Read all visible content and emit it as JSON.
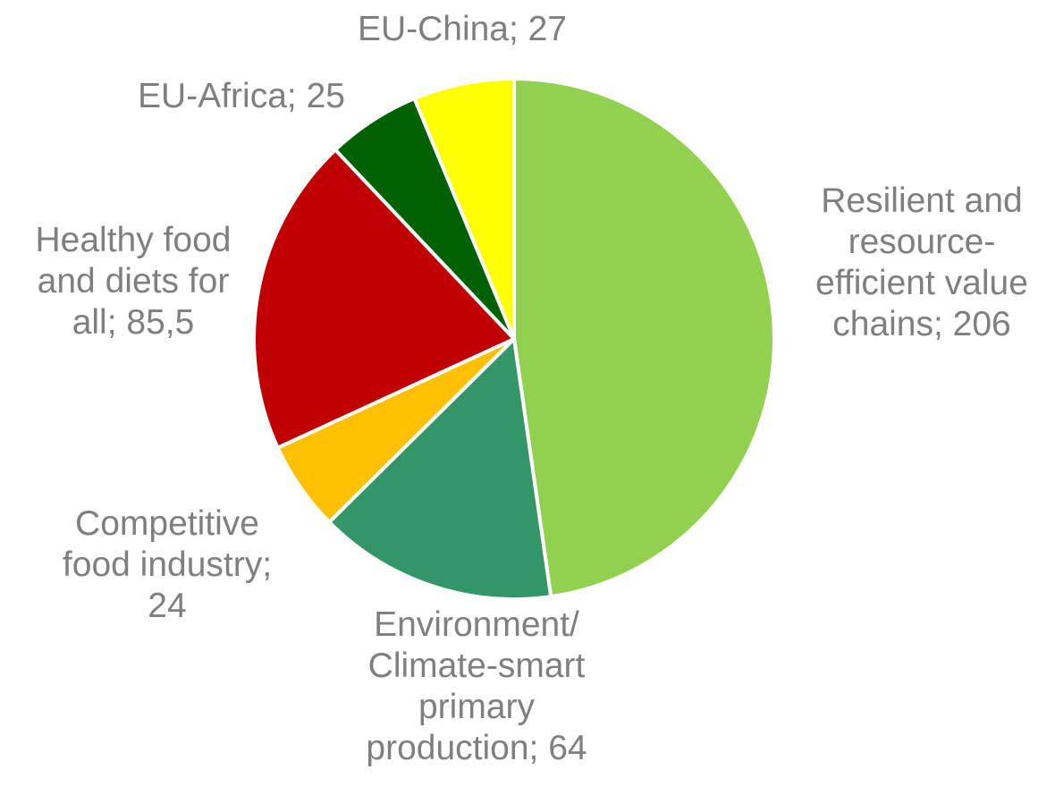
{
  "chart_data": {
    "type": "pie",
    "title": "",
    "slices": [
      {
        "label_lines": [
          "Resilient and",
          "resource-",
          "efficient value",
          "chains; 206"
        ],
        "category": "Resilient and resource-efficient value chains",
        "value": 206,
        "color": "#92d050"
      },
      {
        "label_lines": [
          "Environment/",
          "Climate-smart",
          "primary",
          "production; 64"
        ],
        "category": "Environment/ Climate-smart primary production",
        "value": 64,
        "color": "#339669"
      },
      {
        "label_lines": [
          "Competitive",
          "food industry;",
          "24"
        ],
        "category": "Competitive food industry",
        "value": 24,
        "color": "#ffc000"
      },
      {
        "label_lines": [
          "Healthy food",
          "and diets for",
          "all; 85,5"
        ],
        "category": "Healthy food and diets for all",
        "value": 85.5,
        "color": "#c00000"
      },
      {
        "label_lines": [
          "EU-Africa; 25"
        ],
        "category": "EU-Africa",
        "value": 25,
        "color": "#006100"
      },
      {
        "label_lines": [
          "EU-China; 27"
        ],
        "category": "EU-China",
        "value": 27,
        "color": "#ffff00"
      }
    ],
    "start_angle_deg": 0,
    "direction": "clockwise",
    "label_color": "#7f7f7f"
  }
}
